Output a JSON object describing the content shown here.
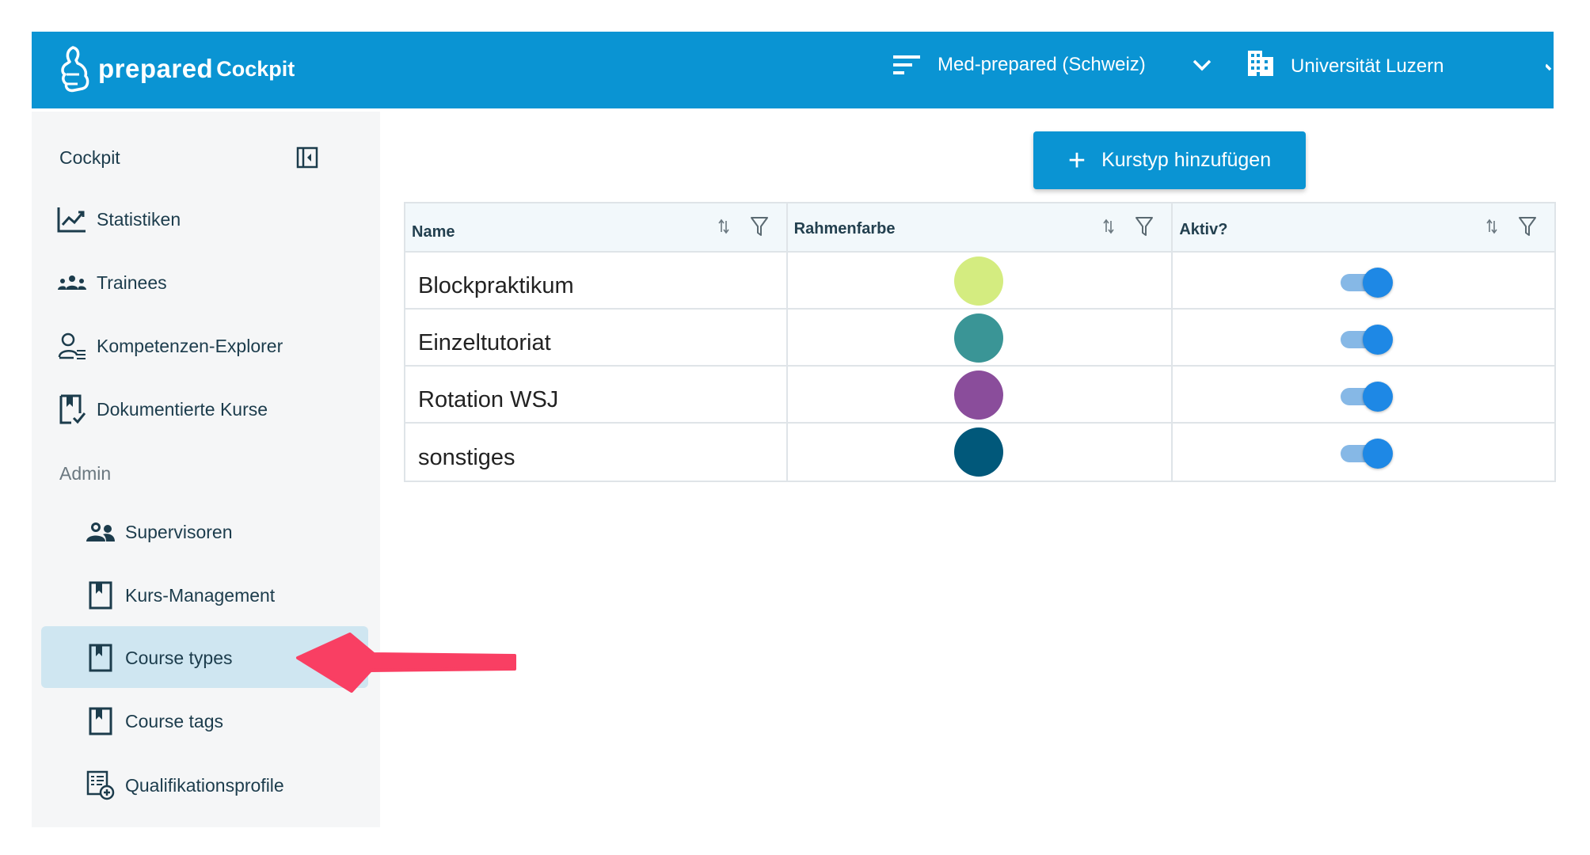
{
  "header": {
    "brand_main": "prepared",
    "brand_sub": "Cockpit",
    "program": "Med-prepared (Schweiz)",
    "institution": "Universität Luzern",
    "bg_color": "#0a94d3"
  },
  "sidebar": {
    "title": "Cockpit",
    "items": [
      {
        "label": "Statistiken",
        "icon": "chart-line-icon"
      },
      {
        "label": "Trainees",
        "icon": "group-icon"
      },
      {
        "label": "Kompetenzen-Explorer",
        "icon": "user-list-icon"
      },
      {
        "label": "Dokumentierte Kurse",
        "icon": "bookmark-check-icon"
      }
    ],
    "section_admin": "Admin",
    "admin_items": [
      {
        "label": "Supervisoren",
        "icon": "supervisors-icon"
      },
      {
        "label": "Kurs-Management",
        "icon": "bookmark-icon"
      },
      {
        "label": "Course types",
        "icon": "bookmark-icon",
        "active": true
      },
      {
        "label": "Course tags",
        "icon": "bookmark-icon"
      },
      {
        "label": "Qualifikationsprofile",
        "icon": "document-plus-icon"
      }
    ]
  },
  "main": {
    "add_button_label": "Kurstyp hinzufügen",
    "table": {
      "columns": [
        "Name",
        "Rahmenfarbe",
        "Aktiv?"
      ],
      "rows": [
        {
          "name": "Blockpraktikum",
          "color": "#d4ec80",
          "active": true
        },
        {
          "name": "Einzeltutoriat",
          "color": "#3a9596",
          "active": true
        },
        {
          "name": "Rotation WSJ",
          "color": "#8a4d9b",
          "active": true
        },
        {
          "name": "sonstiges",
          "color": "#01587a",
          "active": true
        }
      ]
    }
  },
  "annotation": {
    "arrow_color": "#f93f63",
    "points_to": "Course types"
  }
}
